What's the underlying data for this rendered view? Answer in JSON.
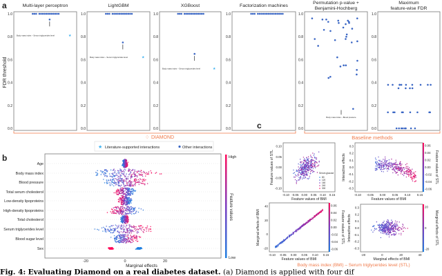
{
  "figure": {
    "caption_label": "Fig. 4:",
    "caption_title": "Evaluating Diamond on a real diabetes dataset.",
    "caption_text": "(a) Diamond is applied with four dif",
    "colors": {
      "point": "#3a66c4",
      "star": "#3ab0f0",
      "accent": "#f07a4a",
      "low": "#1e7fe0",
      "high": "#ff0a5a"
    }
  },
  "panel_a": {
    "label": "a",
    "ylabel": "FDR threshold",
    "yticks": [
      "0.0",
      "0.2",
      "0.4",
      "0.6",
      "0.8",
      "1.0"
    ],
    "group_diamond": "DIAMOND",
    "group_baseline": "Baseline methods",
    "legend": {
      "star": "Literature-supported interactions",
      "dot": "Other interactions"
    },
    "annotation_bmi_stl": "Body mass index – Serum triglycerides level",
    "annotation_bmi_bp": "Body mass index – Blood pressure"
  },
  "panel_b": {
    "label": "b",
    "xlabel": "Marginal effects",
    "xticks": [
      "-20",
      "0",
      "20"
    ],
    "colorbar_label": "Feature values",
    "colorbar_high": "High",
    "colorbar_low": "Low",
    "features": [
      "Age",
      "Body mass index",
      "Blood pressure",
      "Total serum cholesterol",
      "Low-density lipoproteins",
      "High-density lipoproteins",
      "Total cholesterol",
      "Serum triglycerides level",
      "Blood sugar level",
      "Sex"
    ]
  },
  "panel_c": {
    "label": "c",
    "title": "Body mass index (BMI) – Serum triglycerides level (STL)",
    "tl": {
      "xlabel": "Feature values of BMI",
      "ylabel": "Feature values of STL",
      "xticks": [
        "-0.10",
        "-0.05",
        "0.00",
        "0.05",
        "0.10",
        "0.15"
      ],
      "yticks": [
        "0.10",
        "0.05",
        "0.00",
        "-0.05",
        "-0.10"
      ],
      "legend_title": "Serum glucose",
      "legend_items": [
        "80",
        "120",
        "160",
        "240",
        "300"
      ]
    },
    "tr": {
      "xlabel": "Feature values of BMI",
      "ylabel": "Interactive effects",
      "xticks": [
        "-0.10",
        "-0.05",
        "0.00",
        "0.05",
        "0.10",
        "0.15"
      ],
      "yticks": [
        "0.3",
        "0.2",
        "0.1",
        "0.0",
        "-0.1",
        "-0.2",
        "-0.3"
      ],
      "cbar_label": "Feature values of STL",
      "cbar_ticks": [
        "0.06",
        "0.04",
        "0.02",
        "0.00",
        "-0.02",
        "-0.04",
        "-0.06"
      ]
    },
    "bl": {
      "xlabel": "Feature values of BMI",
      "ylabel": "Marginal effects of BMI",
      "xticks": [
        "-0.10",
        "-0.05",
        "0.00",
        "0.05",
        "0.10",
        "0.15"
      ],
      "yticks": [
        "40",
        "20",
        "0",
        "-20"
      ],
      "cbar_label": "Feature values of STL",
      "cbar_ticks": [
        "0.06",
        "0.04",
        "0.02",
        "0.00",
        "-0.02",
        "-0.04",
        "-0.06"
      ]
    },
    "br": {
      "xlabel": "Marginal effects of BMI",
      "ylabel": "Interactive effects",
      "xticks": [
        "-20",
        "0",
        "20",
        "40"
      ],
      "yticks": [
        "0.3",
        "0.2",
        "0.1",
        "0.0",
        "-0.1",
        "-0.2",
        "-0.3"
      ],
      "cbar_label": "Marginal effects of STL",
      "cbar_ticks": [
        "20",
        "0",
        "-20"
      ]
    }
  },
  "chart_data": [
    {
      "type": "scatter",
      "ylabel": "FDR threshold",
      "ylim": [
        0,
        1
      ],
      "series": [
        {
          "name": "Multi-layer perceptron",
          "values": [
            1.0,
            1.0,
            1.0,
            1.0,
            1.0,
            1.0,
            1.0,
            1.0,
            1.0,
            1.0,
            1.0,
            1.0,
            1.0,
            1.0,
            1.0,
            0.95
          ],
          "literature_supported": [
            0.81
          ]
        },
        {
          "name": "LightGBM",
          "values": [
            1.0,
            1.0,
            1.0,
            1.0,
            1.0,
            1.0,
            1.0,
            1.0,
            1.0,
            1.0,
            1.0,
            1.0,
            1.0,
            1.0,
            1.0,
            0.75
          ],
          "literature_supported": [
            0.62
          ]
        },
        {
          "name": "XGBoost",
          "values": [
            1.0,
            1.0,
            1.0,
            1.0,
            1.0,
            1.0,
            1.0,
            1.0,
            1.0,
            1.0,
            1.0,
            1.0,
            1.0,
            1.0,
            1.0,
            0.65
          ],
          "literature_supported": [
            0.52
          ]
        },
        {
          "name": "Factorization machines",
          "values": [
            1.0,
            1.0,
            1.0,
            1.0,
            1.0,
            1.0,
            1.0,
            1.0,
            1.0,
            1.0,
            1.0,
            1.0,
            1.0,
            1.0,
            1.0,
            1.0,
            1.0,
            1.0
          ]
        },
        {
          "name": "Permutation p-value + Benjamini-Hochberg",
          "values": [
            0.96,
            0.96,
            0.95,
            0.95,
            0.94,
            0.94,
            0.93,
            0.93,
            0.92,
            0.92,
            0.91,
            0.88,
            0.87,
            0.86,
            0.85,
            0.82,
            0.8,
            0.78,
            0.78,
            0.77,
            0.76,
            0.75,
            0.72,
            0.62,
            0.59,
            0.55,
            0.55,
            0.54,
            0.51,
            0.47,
            0.45,
            0.44,
            0.17
          ]
        },
        {
          "name": "Maximum feature-wise FDR",
          "values": [
            0.38,
            0.38,
            0.38,
            0.38,
            0.38,
            0.38,
            0.38,
            0.38,
            0.38,
            0.38,
            0.35,
            0.35,
            0.35,
            0.35,
            0.14,
            0.14,
            0.14,
            0.14,
            0.14,
            0.14,
            0.14,
            0.14,
            0.14,
            0.0,
            0.0,
            0.0,
            0.0,
            0.0,
            0.0,
            0.0,
            0.0
          ]
        }
      ]
    }
  ]
}
